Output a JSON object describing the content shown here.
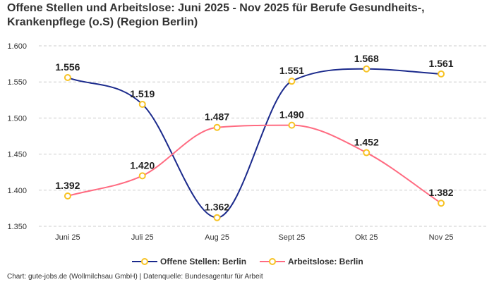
{
  "chart_data": {
    "type": "line",
    "title": "Offene Stellen und Arbeitslose: Juni 2025 - Nov 2025 für Berufe Gesundheits-, Krankenpflege (o.S) (Region Berlin)",
    "categories": [
      "Juni 25",
      "Juli 25",
      "Aug 25",
      "Sept 25",
      "Okt 25",
      "Nov 25"
    ],
    "series": [
      {
        "name": "Offene Stellen: Berlin",
        "color": "#1b2a8c",
        "values": [
          1556,
          1519,
          1362,
          1551,
          1568,
          1561
        ],
        "labels": [
          "1.556",
          "1.519",
          "1.362",
          "1.551",
          "1.568",
          "1.561"
        ]
      },
      {
        "name": "Arbeitslose: Berlin",
        "color": "#ff6b81",
        "values": [
          1392,
          1420,
          1487,
          1490,
          1452,
          1382
        ],
        "labels": [
          "1.392",
          "1.420",
          "1.487",
          "1.490",
          "1.452",
          "1.382"
        ]
      }
    ],
    "ylim": [
      1350,
      1600
    ],
    "yticks": [
      1350,
      1400,
      1450,
      1500,
      1550,
      1600
    ],
    "ytick_labels": [
      "1.350",
      "1.400",
      "1.450",
      "1.500",
      "1.550",
      "1.600"
    ],
    "marker_color": "#f7c325",
    "grid": true,
    "legend": "bottom",
    "xlabel": "",
    "ylabel": ""
  },
  "footer": "Chart: gute-jobs.de (Wollmilchsau GmbH) | Datenquelle: Bundesagentur für Arbeit"
}
